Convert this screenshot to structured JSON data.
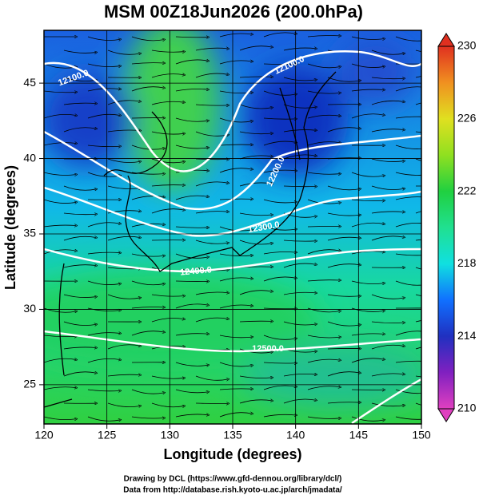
{
  "title": "MSM 00Z18Jun2026 (200.0hPa)",
  "x_axis": {
    "label": "Longitude (degrees)",
    "lim": [
      120,
      150
    ],
    "ticks": [
      120,
      125,
      130,
      135,
      140,
      145,
      150
    ]
  },
  "y_axis": {
    "label": "Latitude  (degrees)",
    "lim": [
      22.4,
      48.5
    ],
    "ticks": [
      25,
      30,
      35,
      40,
      45
    ]
  },
  "colorbar": {
    "lim": [
      210,
      230
    ],
    "ticks": [
      210,
      214,
      218,
      222,
      226,
      230
    ]
  },
  "contour_labels": [
    "12100.0",
    "12100.0",
    "12200.0",
    "12300.0",
    "12400.0",
    "12500.0"
  ],
  "credits": [
    "Drawing by DCL (https://www.gfd-dennou.org/library/dcl/)",
    "Data from http://database.rish.kyoto-u.ac.jp/arch/jmadata/"
  ]
}
